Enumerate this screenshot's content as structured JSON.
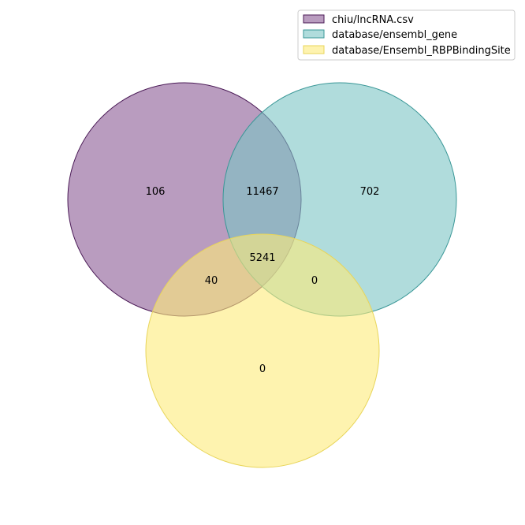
{
  "sets": [
    {
      "name": "chiu/lncRNA.csv",
      "fill": "#8b5a94",
      "stroke": "#4a1a56"
    },
    {
      "name": "database/ensembl_gene",
      "fill": "#7cc4c4",
      "stroke": "#3a9797"
    },
    {
      "name": "database/Ensembl_RBPBindingSite",
      "fill": "#fdeb7a",
      "stroke": "#e8d55a"
    }
  ],
  "regions": {
    "only_a": "106",
    "a_and_b": "11467",
    "only_b": "702",
    "a_and_b_and_c": "5241",
    "a_and_c": "40",
    "b_and_c": "0",
    "only_c": "0"
  }
}
